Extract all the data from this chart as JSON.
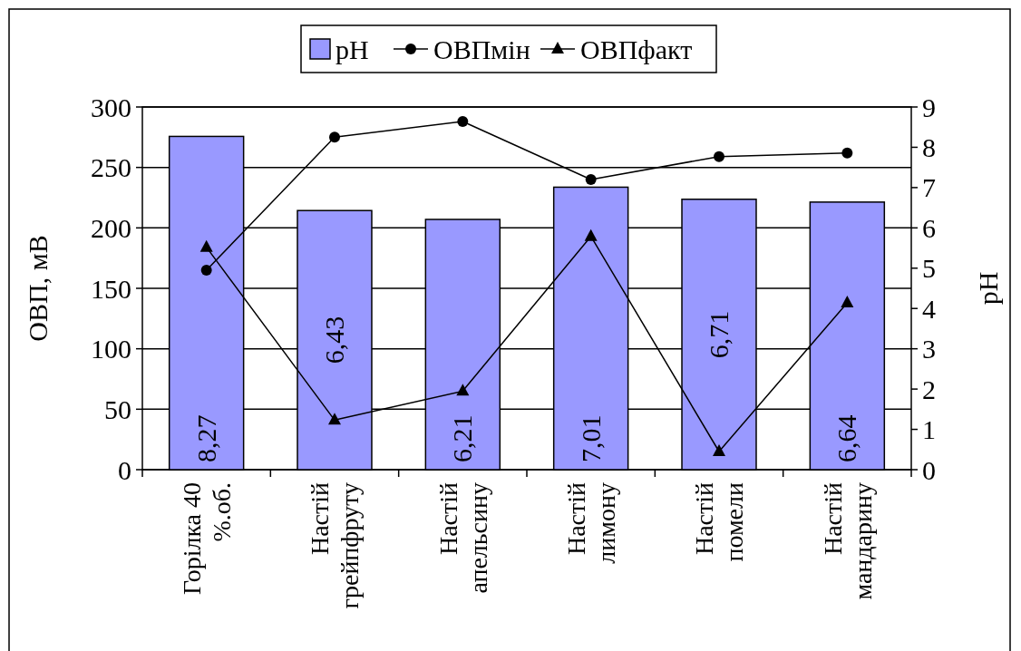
{
  "chart_data": {
    "type": "bar",
    "categories": [
      "Горілка 40\n%.об.",
      "Настій\nгрейпфруту",
      "Настій\nапельсину",
      "Настій\nлимону",
      "Настій\nпомели",
      "Настій\nмандарину"
    ],
    "series": [
      {
        "name": "pH",
        "axis": "y2",
        "color": "#9999ff",
        "values": [
          8.27,
          6.43,
          6.21,
          7.01,
          6.71,
          6.64
        ],
        "value_labels": [
          "8,27",
          "6,43",
          "6,21",
          "7,01",
          "6,71",
          "6,64"
        ]
      },
      {
        "name": "ОВПмін",
        "type": "line",
        "marker": "circle",
        "color": "#000000",
        "values": [
          165,
          275,
          288,
          240,
          259,
          262
        ]
      },
      {
        "name": "ОВПфакт",
        "type": "line",
        "marker": "triangle",
        "color": "#000000",
        "values": [
          184,
          41,
          65,
          193,
          15,
          138
        ]
      }
    ],
    "ylabel": "ОВП, мВ",
    "y2label": "pH",
    "ylim": [
      0,
      300
    ],
    "yticks": [
      0,
      50,
      100,
      150,
      200,
      250,
      300
    ],
    "y2lim": [
      0,
      9
    ],
    "y2ticks": [
      0,
      1,
      2,
      3,
      4,
      5,
      6,
      7,
      8,
      9
    ],
    "grid": "y",
    "legend": "top"
  }
}
